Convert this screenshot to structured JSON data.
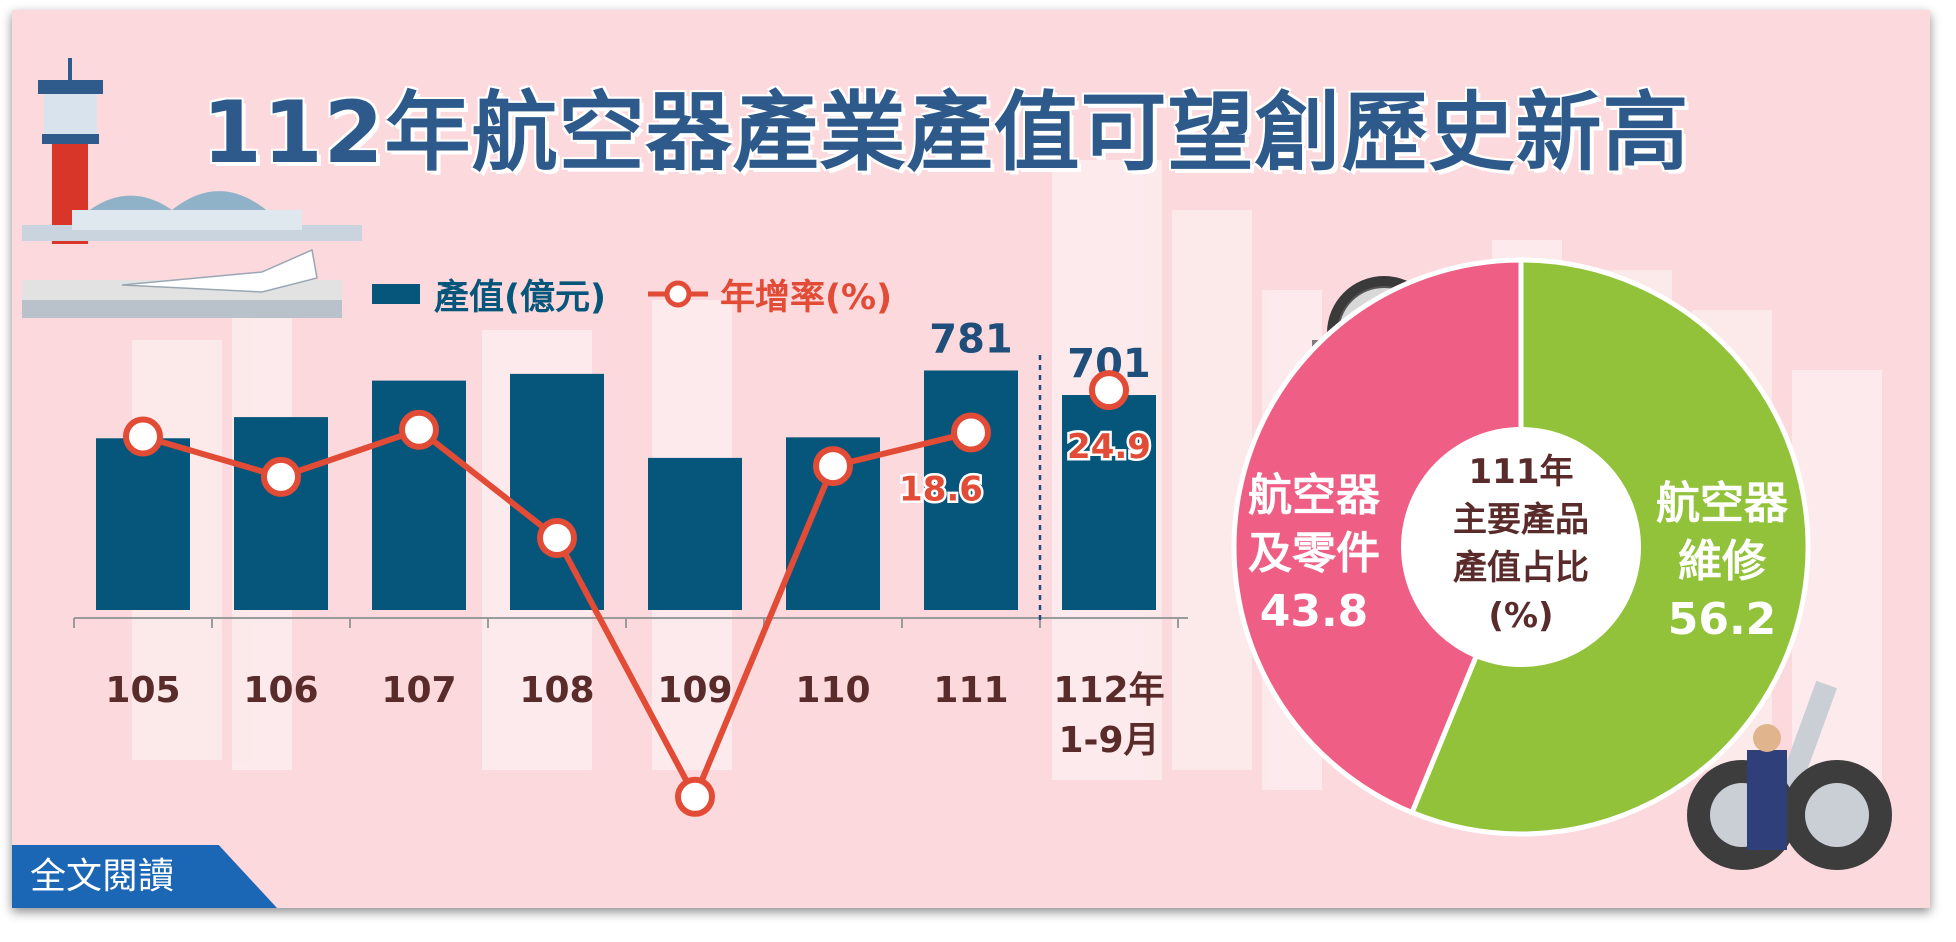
{
  "title": "112年航空器產業產值可望創歷史新高",
  "read_more_label": "全文閱讀",
  "chart_data": [
    {
      "type": "bar",
      "legend": {
        "bar_label": "產值(億元)",
        "line_label": "年增率(%)"
      },
      "categories": [
        "105",
        "106",
        "107",
        "108",
        "109",
        "110",
        "111",
        "112年 1-9月"
      ],
      "category_lines": [
        [
          "105"
        ],
        [
          "106"
        ],
        [
          "107"
        ],
        [
          "108"
        ],
        [
          "109"
        ],
        [
          "110"
        ],
        [
          "111"
        ],
        [
          "112年",
          "1-9月"
        ]
      ],
      "series": [
        {
          "name": "產值(億元)",
          "type": "bar",
          "color": "#06557a",
          "values": [
            560,
            629,
            748,
            770,
            496,
            563,
            781,
            701
          ]
        },
        {
          "name": "年增率(%)",
          "type": "line",
          "color": "#e24b35",
          "values": [
            18.0,
            12.0,
            19.0,
            2.9,
            -35.6,
            13.6,
            18.6,
            24.9
          ]
        }
      ],
      "data_labels": {
        "bar": [
          "",
          "",
          "",
          "",
          "",
          "",
          "781",
          "701"
        ],
        "line": [
          "",
          "",
          "",
          "",
          "",
          "",
          "18.6",
          "24.9"
        ]
      },
      "bar_ylim": [
        0,
        900
      ],
      "line_ylim": [
        -45,
        45
      ],
      "separator_after_index": 6
    },
    {
      "type": "pie",
      "title": [
        "111年",
        "主要產品",
        "產值占比",
        "(%)"
      ],
      "slices": [
        {
          "label": "航空器維修",
          "label_lines": [
            "航空器",
            "維修"
          ],
          "value": 56.2,
          "value_text": "56.2",
          "color": "#91c23a"
        },
        {
          "label": "航空器及零件",
          "label_lines": [
            "航空器",
            "及零件"
          ],
          "value": 43.8,
          "value_text": "43.8",
          "color": "#ee5e85"
        }
      ]
    }
  ]
}
